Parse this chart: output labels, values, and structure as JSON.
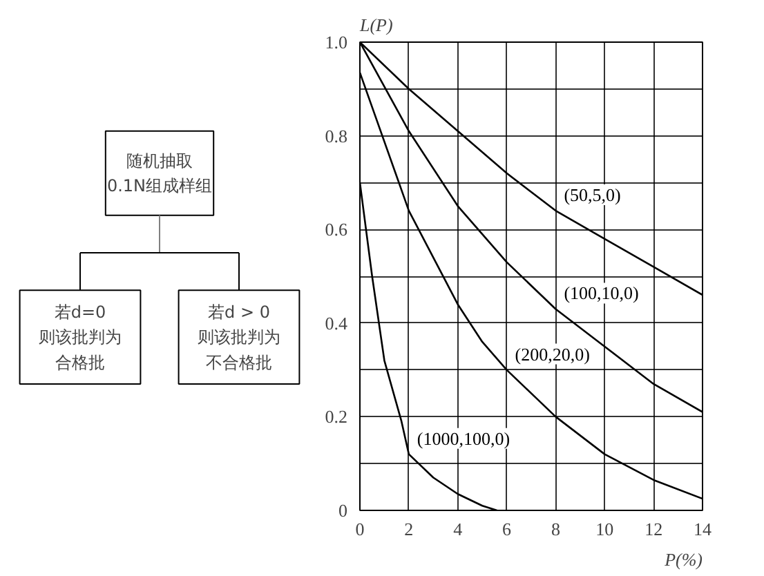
{
  "chart_data": [
    {
      "type": "other",
      "annotations": [
        "随机抽取\n0.1N组成样组",
        "若d=0\n则该批判为合格批",
        "若d > 0\n则该批判为不合格批"
      ]
    },
    {
      "type": "line",
      "ylabel": "L(P)",
      "xlabel": "P(%)",
      "xlim": [
        0,
        14
      ],
      "ylim": [
        0,
        1.0
      ],
      "xticks": [
        0,
        2,
        4,
        6,
        8,
        10,
        12,
        14
      ],
      "yticks": [
        0,
        {
          "value": 0.1,
          "label": null
        },
        0.2,
        {
          "value": 0.3,
          "label": null
        },
        0.4,
        {
          "value": 0.5,
          "label": null
        },
        0.6,
        {
          "value": 0.7,
          "label": null
        },
        0.8,
        {
          "value": 0.9,
          "label": null
        },
        {
          "value": 1.0,
          "label": "1.0"
        }
      ],
      "grid": true,
      "series": [
        {
          "name": "(50,5,0)",
          "color": "#000000",
          "x": [
            0,
            2,
            4,
            6,
            8,
            10,
            12,
            14
          ],
          "values": [
            1.0,
            0.9,
            0.81,
            0.72,
            0.64,
            0.58,
            0.52,
            0.46
          ]
        },
        {
          "name": "(100,10,0)",
          "color": "#000000",
          "x": [
            0,
            2,
            4,
            6,
            8,
            10,
            12,
            14
          ],
          "values": [
            1.0,
            0.81,
            0.65,
            0.53,
            0.43,
            0.35,
            0.27,
            0.21
          ]
        },
        {
          "name": "(200,20,0)",
          "color": "#000000",
          "x": [
            0,
            2,
            4,
            5,
            6,
            8,
            10,
            12,
            14
          ],
          "values": [
            0.935,
            0.64,
            0.44,
            0.36,
            0.3,
            0.2,
            0.12,
            0.065,
            0.025
          ]
        },
        {
          "name": "(1000,100,0)",
          "color": "#000000",
          "x": [
            0,
            0.5,
            1,
            1.7,
            2,
            3,
            4,
            5,
            5.6
          ],
          "values": [
            0.7,
            0.5,
            0.32,
            0.19,
            0.12,
            0.07,
            0.035,
            0.01,
            0
          ]
        }
      ]
    }
  ]
}
